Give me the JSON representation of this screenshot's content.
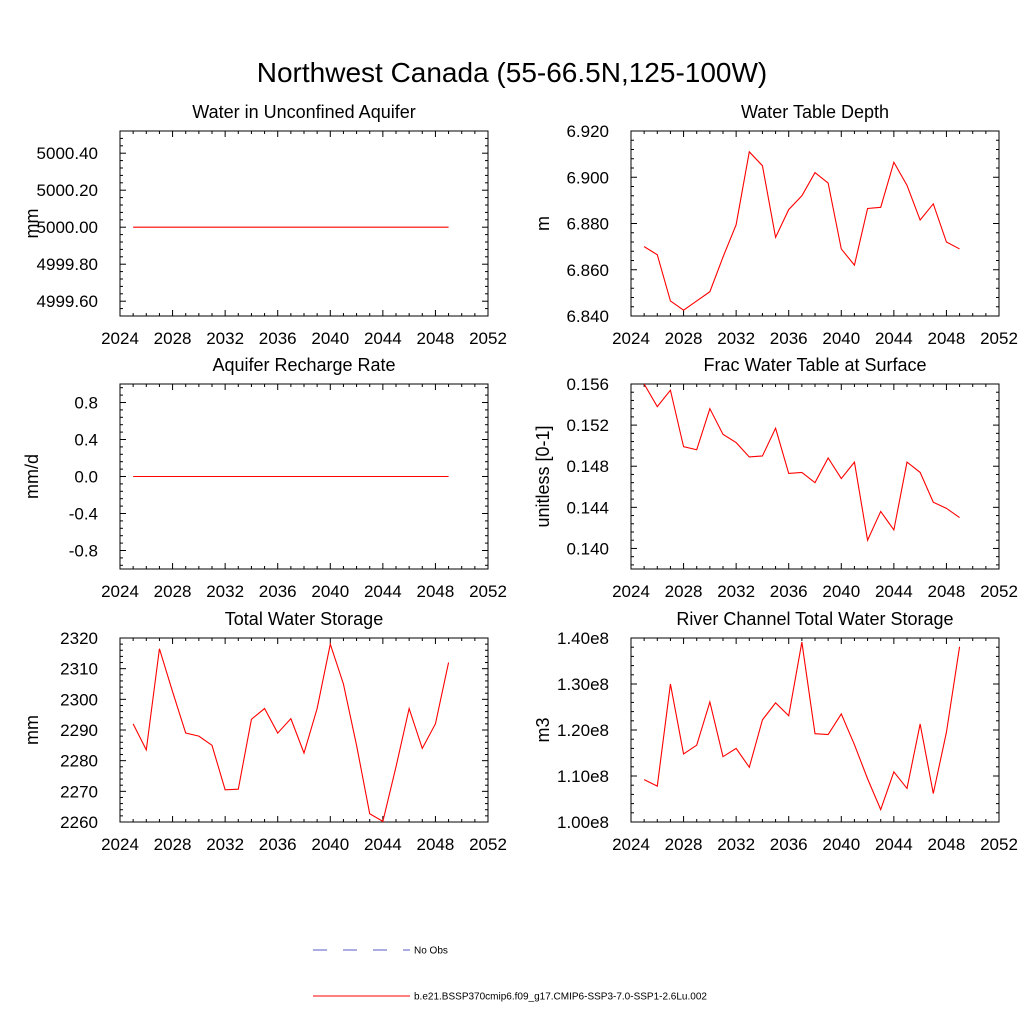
{
  "figure_title": "Northwest Canada (55-66.5N,125-100W)",
  "legend": {
    "items": [
      {
        "label": "No Obs",
        "color": "#5a5ac8",
        "dash": true
      },
      {
        "label": "b.e21.BSSP370cmip6.f09_g17.CMIP6-SSP3-7.0-SSP1-2.6Lu.002",
        "color": "#ff0000",
        "dash": false
      }
    ]
  },
  "chart_data": [
    {
      "type": "line",
      "title": "Water in Unconfined Aquifer",
      "ylabel": "mm",
      "xlim": [
        2024,
        2052
      ],
      "ylim": [
        4999.52,
        5000.52
      ],
      "xticks": [
        2024,
        2028,
        2032,
        2036,
        2040,
        2044,
        2048,
        2052
      ],
      "yticks": [
        4999.6,
        4999.8,
        5000.0,
        5000.2,
        5000.4
      ],
      "ytick_labels": [
        "4999.60",
        "4999.80",
        "5000.00",
        "5000.20",
        "5000.40"
      ],
      "series": [
        {
          "color": "#ff0000",
          "x": [
            2025,
            2026,
            2027,
            2028,
            2029,
            2030,
            2031,
            2032,
            2033,
            2034,
            2035,
            2036,
            2037,
            2038,
            2039,
            2040,
            2041,
            2042,
            2043,
            2044,
            2045,
            2046,
            2047,
            2048,
            2049
          ],
          "y": [
            5000.0,
            5000.0,
            5000.0,
            5000.0,
            5000.0,
            5000.0,
            5000.0,
            5000.0,
            5000.0,
            5000.0,
            5000.0,
            5000.0,
            5000.0,
            5000.0,
            5000.0,
            5000.0,
            5000.0,
            5000.0,
            5000.0,
            5000.0,
            5000.0,
            5000.0,
            5000.0,
            5000.0,
            5000.0
          ]
        }
      ]
    },
    {
      "type": "line",
      "title": "Water Table Depth",
      "ylabel": "m",
      "xlim": [
        2024,
        2052
      ],
      "ylim": [
        6.84,
        6.92
      ],
      "xticks": [
        2024,
        2028,
        2032,
        2036,
        2040,
        2044,
        2048,
        2052
      ],
      "yticks": [
        6.84,
        6.86,
        6.88,
        6.9,
        6.92
      ],
      "ytick_labels": [
        "6.840",
        "6.860",
        "6.880",
        "6.900",
        "6.920"
      ],
      "series": [
        {
          "color": "#ff0000",
          "x": [
            2025,
            2026,
            2027,
            2028,
            2029,
            2030,
            2031,
            2032,
            2033,
            2034,
            2035,
            2036,
            2037,
            2038,
            2039,
            2040,
            2041,
            2042,
            2043,
            2044,
            2045,
            2046,
            2047,
            2048,
            2049
          ],
          "y": [
            6.87,
            6.8665,
            6.8465,
            6.8425,
            6.8465,
            6.8505,
            6.8655,
            6.8795,
            6.911,
            6.905,
            6.874,
            6.886,
            6.892,
            6.902,
            6.8975,
            6.869,
            6.862,
            6.8865,
            6.887,
            6.9065,
            6.8965,
            6.8815,
            6.8885,
            6.872,
            6.869
          ]
        }
      ]
    },
    {
      "type": "line",
      "title": "Aquifer Recharge Rate",
      "ylabel": "mm/d",
      "xlim": [
        2024,
        2052
      ],
      "ylim": [
        -1.0,
        1.0
      ],
      "xticks": [
        2024,
        2028,
        2032,
        2036,
        2040,
        2044,
        2048,
        2052
      ],
      "yticks": [
        -0.8,
        -0.4,
        0.0,
        0.4,
        0.8
      ],
      "ytick_labels": [
        "-0.8",
        "-0.4",
        "0.0",
        "0.4",
        "0.8"
      ],
      "series": [
        {
          "color": "#ff0000",
          "x": [
            2025,
            2026,
            2027,
            2028,
            2029,
            2030,
            2031,
            2032,
            2033,
            2034,
            2035,
            2036,
            2037,
            2038,
            2039,
            2040,
            2041,
            2042,
            2043,
            2044,
            2045,
            2046,
            2047,
            2048,
            2049
          ],
          "y": [
            0,
            0,
            0,
            0,
            0,
            0,
            0,
            0,
            0,
            0,
            0,
            0,
            0,
            0,
            0,
            0,
            0,
            0,
            0,
            0,
            0,
            0,
            0,
            0,
            0
          ]
        }
      ]
    },
    {
      "type": "line",
      "title": "Frac Water Table at Surface",
      "ylabel": "unitless [0-1]",
      "xlim": [
        2024,
        2052
      ],
      "ylim": [
        0.138,
        0.156
      ],
      "xticks": [
        2024,
        2028,
        2032,
        2036,
        2040,
        2044,
        2048,
        2052
      ],
      "yticks": [
        0.14,
        0.144,
        0.148,
        0.152,
        0.156
      ],
      "ytick_labels": [
        "0.140",
        "0.144",
        "0.148",
        "0.152",
        "0.156"
      ],
      "series": [
        {
          "color": "#ff0000",
          "x": [
            2025,
            2026,
            2027,
            2028,
            2029,
            2030,
            2031,
            2032,
            2033,
            2034,
            2035,
            2036,
            2037,
            2038,
            2039,
            2040,
            2041,
            2042,
            2043,
            2044,
            2045,
            2046,
            2047,
            2048,
            2049
          ],
          "y": [
            0.156,
            0.1538,
            0.1554,
            0.1499,
            0.1496,
            0.1536,
            0.1511,
            0.1503,
            0.1489,
            0.149,
            0.1517,
            0.1473,
            0.1474,
            0.1464,
            0.1488,
            0.1468,
            0.1484,
            0.1408,
            0.1436,
            0.1418,
            0.1484,
            0.1474,
            0.1445,
            0.1439,
            0.143
          ]
        }
      ]
    },
    {
      "type": "line",
      "title": "Total Water Storage",
      "ylabel": "mm",
      "xlim": [
        2024,
        2052
      ],
      "ylim": [
        2260,
        2320
      ],
      "xticks": [
        2024,
        2028,
        2032,
        2036,
        2040,
        2044,
        2048,
        2052
      ],
      "yticks": [
        2260,
        2270,
        2280,
        2290,
        2300,
        2310,
        2320
      ],
      "ytick_labels": [
        "2260",
        "2270",
        "2280",
        "2290",
        "2300",
        "2310",
        "2320"
      ],
      "series": [
        {
          "color": "#ff0000",
          "x": [
            2025,
            2026,
            2027,
            2028,
            2029,
            2030,
            2031,
            2032,
            2033,
            2034,
            2035,
            2036,
            2037,
            2038,
            2039,
            2040,
            2041,
            2042,
            2043,
            2044,
            2045,
            2046,
            2047,
            2048,
            2049
          ],
          "y": [
            2292,
            2283.5,
            2316.5,
            2302.5,
            2289,
            2288,
            2285,
            2270.5,
            2270.7,
            2293.5,
            2297,
            2289,
            2293.7,
            2282.5,
            2297,
            2318,
            2305,
            2285,
            2262.7,
            2260.2,
            2278,
            2297,
            2284,
            2292,
            2312
          ]
        }
      ]
    },
    {
      "type": "line",
      "title": "River Channel Total Water Storage",
      "ylabel": "m3",
      "xlim": [
        2024,
        2052
      ],
      "ylim": [
        100000000,
        140000000
      ],
      "xticks": [
        2024,
        2028,
        2032,
        2036,
        2040,
        2044,
        2048,
        2052
      ],
      "yticks": [
        100000000,
        110000000,
        120000000,
        130000000,
        140000000
      ],
      "ytick_labels": [
        "1.00e8",
        "1.10e8",
        "1.20e8",
        "1.30e8",
        "1.40e8"
      ],
      "series": [
        {
          "color": "#ff0000",
          "x": [
            2025,
            2026,
            2027,
            2028,
            2029,
            2030,
            2031,
            2032,
            2033,
            2034,
            2035,
            2036,
            2037,
            2038,
            2039,
            2040,
            2041,
            2042,
            2043,
            2044,
            2045,
            2046,
            2047,
            2048,
            2049
          ],
          "y": [
            109200000,
            107800000,
            130000000,
            114800000,
            116700000,
            126100000,
            114200000,
            116000000,
            111900000,
            122200000,
            125900000,
            123100000,
            139100000,
            119200000,
            119000000,
            123500000,
            116800000,
            109400000,
            102700000,
            110900000,
            107300000,
            121300000,
            106200000,
            119500000,
            138100000
          ]
        }
      ]
    }
  ]
}
